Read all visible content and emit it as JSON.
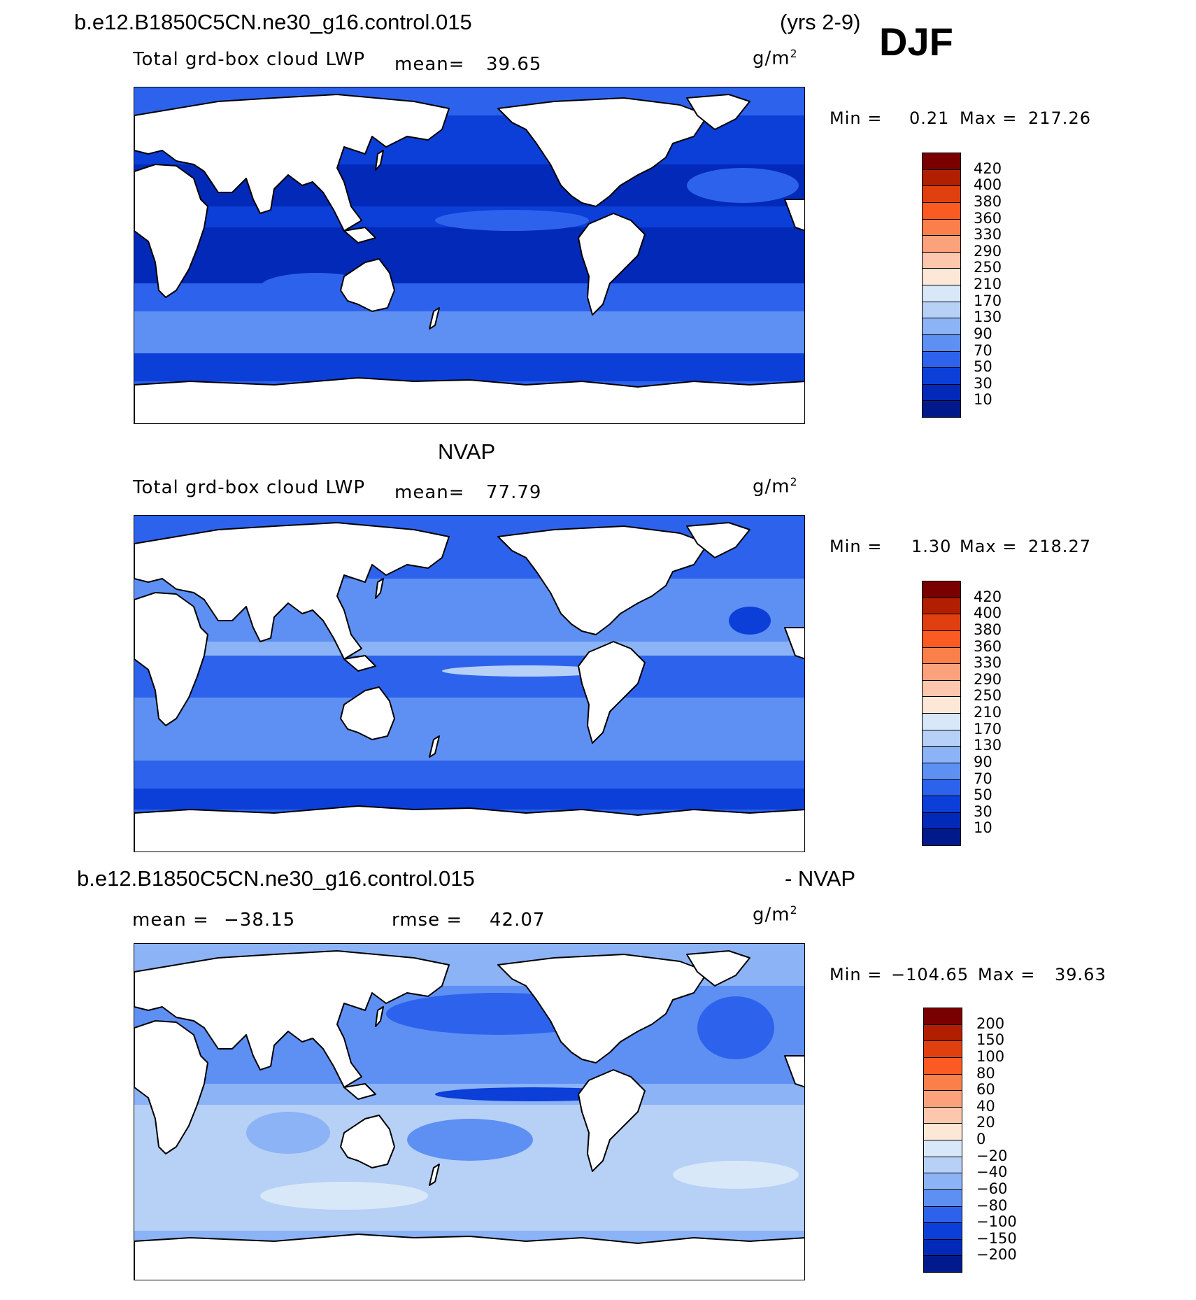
{
  "header": {
    "case_name": "b.e12.B1850C5CN.ne30_g16.control.015",
    "years": "(yrs 2-9)",
    "season": "DJF"
  },
  "panels": [
    {
      "id": "model",
      "subtitle": "",
      "variable": "Total grd-box cloud LWP",
      "mean_label": "mean=",
      "mean_value": "39.65",
      "units": "g/m",
      "units_sup": "2",
      "min_label": "Min =",
      "min_value": "0.21",
      "max_label": "Max =",
      "max_value": "217.26",
      "levels": [
        "420",
        "400",
        "380",
        "360",
        "330",
        "290",
        "250",
        "210",
        "170",
        "130",
        "90",
        "70",
        "50",
        "30",
        "10"
      ]
    },
    {
      "id": "obs",
      "subtitle": "NVAP",
      "variable": "Total grd-box cloud LWP",
      "mean_label": "mean=",
      "mean_value": "77.79",
      "units": "g/m",
      "units_sup": "2",
      "min_label": "Min =",
      "min_value": "1.30",
      "max_label": "Max =",
      "max_value": "218.27",
      "levels": [
        "420",
        "400",
        "380",
        "360",
        "330",
        "290",
        "250",
        "210",
        "170",
        "130",
        "90",
        "70",
        "50",
        "30",
        "10"
      ]
    },
    {
      "id": "diff",
      "diff_title_left": "b.e12.B1850C5CN.ne30_g16.control.015",
      "diff_title_right": "- NVAP",
      "mean_label": "mean =",
      "mean_value": "−38.15",
      "rmse_label": "rmse =",
      "rmse_value": "42.07",
      "units": "g/m",
      "units_sup": "2",
      "min_label": "Min =",
      "min_value": "−104.65",
      "max_label": "Max =",
      "max_value": "39.63",
      "levels": [
        "200",
        "150",
        "100",
        "80",
        "60",
        "40",
        "20",
        "0",
        "−20",
        "−40",
        "−60",
        "−80",
        "−100",
        "−150",
        "−200"
      ]
    }
  ],
  "colors": {
    "scale": [
      "#7a0000",
      "#b21f00",
      "#e0400f",
      "#fb5a22",
      "#fb7f4a",
      "#fba27c",
      "#fcc7ad",
      "#fde8d8",
      "#d8e8f8",
      "#b6d0f6",
      "#8bb3f5",
      "#5e8ff3",
      "#2d63ec",
      "#0c3ed8",
      "#0329b8",
      "#001a8c"
    ],
    "land": "#ffffff",
    "coast": "#000000"
  }
}
